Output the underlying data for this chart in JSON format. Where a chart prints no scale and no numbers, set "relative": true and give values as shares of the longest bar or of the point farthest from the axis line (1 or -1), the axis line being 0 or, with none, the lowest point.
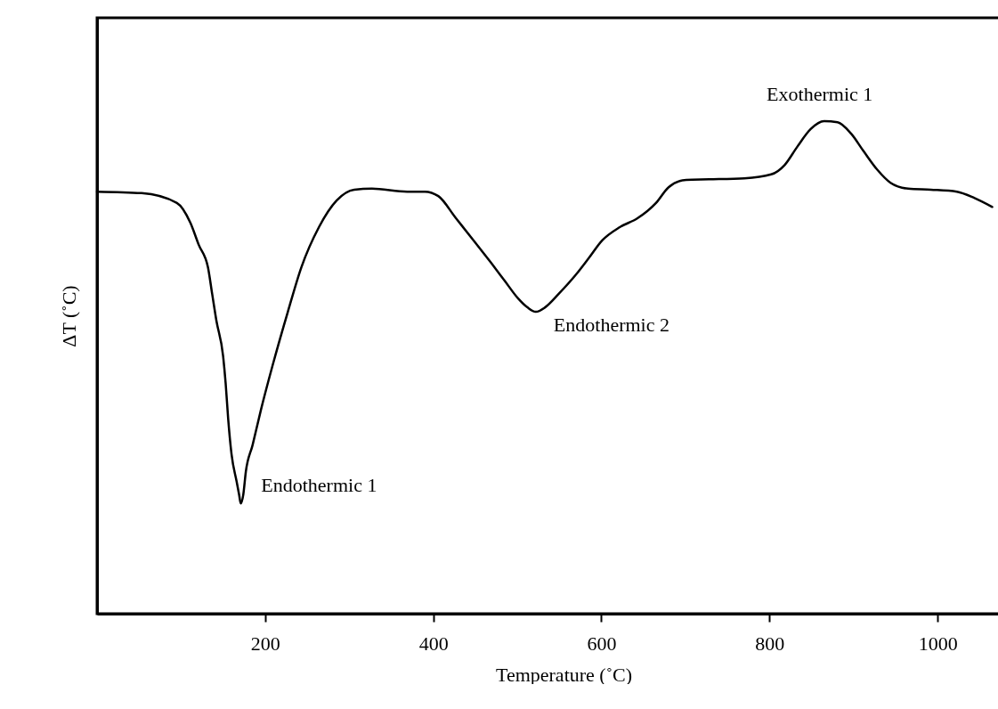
{
  "chart_data": {
    "type": "line",
    "relative": true,
    "xlabel": "Temperature (˚C)",
    "ylabel": "ΔT (˚C)",
    "xlim": [
      0,
      1110
    ],
    "xticks": [
      200,
      400,
      600,
      800,
      1000
    ],
    "grid": false,
    "marker": "none",
    "line_style": "solid",
    "x": [
      0,
      53,
      95,
      111,
      121,
      132,
      137,
      142,
      150,
      153,
      156,
      160,
      166,
      169,
      171,
      174,
      177,
      185,
      195,
      209,
      227,
      243,
      264,
      285,
      306,
      327,
      369,
      390,
      406,
      427,
      448,
      469,
      485,
      501,
      512,
      522,
      533,
      549,
      570,
      585,
      601,
      622,
      643,
      665,
      680,
      701,
      728,
      770,
      802,
      818,
      833,
      849,
      865,
      881,
      897,
      912,
      928,
      944,
      965,
      992,
      1023,
      1044,
      1065
    ],
    "series": [
      {
        "color": "#000000",
        "values": [
          0.857,
          0.854,
          0.834,
          0.794,
          0.749,
          0.703,
          0.649,
          0.595,
          0.523,
          0.468,
          0.396,
          0.324,
          0.269,
          0.242,
          0.224,
          0.242,
          0.288,
          0.342,
          0.414,
          0.505,
          0.613,
          0.703,
          0.785,
          0.839,
          0.861,
          0.863,
          0.857,
          0.857,
          0.848,
          0.803,
          0.758,
          0.712,
          0.676,
          0.64,
          0.622,
          0.613,
          0.622,
          0.649,
          0.689,
          0.722,
          0.758,
          0.785,
          0.803,
          0.834,
          0.866,
          0.881,
          0.882,
          0.884,
          0.892,
          0.911,
          0.948,
          0.984,
          1.0,
          0.998,
          0.975,
          0.939,
          0.902,
          0.875,
          0.863,
          0.861,
          0.857,
          0.844,
          0.826
        ]
      }
    ],
    "annotations": [
      {
        "text": "Endothermic 1",
        "x": 174,
        "y": 0.224
      },
      {
        "text": "Endothermic 2",
        "x": 522,
        "y": 0.613
      },
      {
        "text": "Exothermic 1",
        "x": 865,
        "y": 1.0
      }
    ]
  }
}
